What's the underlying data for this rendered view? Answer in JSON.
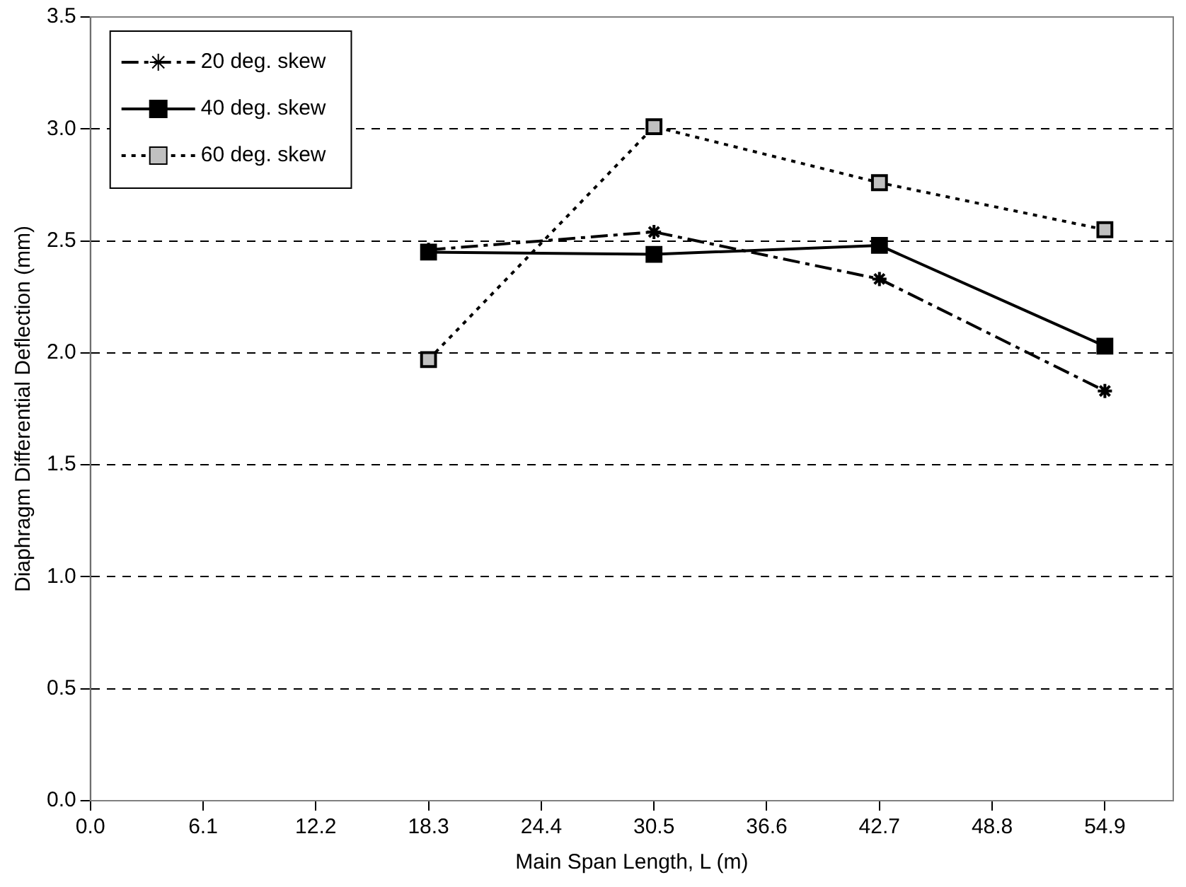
{
  "chart_data": {
    "type": "line",
    "xlabel": "Main Span Length, L (m)",
    "ylabel": "Diaphragm Differential Deflection (mm)",
    "x": [
      18.3,
      30.5,
      42.7,
      54.9
    ],
    "series": [
      {
        "name": "20 deg. skew",
        "color": "#000000",
        "values": [
          2.46,
          2.54,
          2.33,
          1.83
        ],
        "marker": "cross",
        "line_style": "dashed"
      },
      {
        "name": "40 deg. skew",
        "color": "#000000",
        "values": [
          2.45,
          2.44,
          2.48,
          2.03
        ],
        "marker": "square",
        "line_style": "solid"
      },
      {
        "name": "60 deg. skew",
        "color": "#c0c0c0",
        "values": [
          1.97,
          3.01,
          2.76,
          2.55
        ],
        "marker": "square",
        "line_style": "dotted"
      }
    ],
    "xlim": [
      0,
      58.6
    ],
    "xticks": [
      {
        "value": 0,
        "label": "0.0"
      },
      6.1,
      12.2,
      18.3,
      24.4,
      30.5,
      36.6,
      42.7,
      48.8,
      54.9
    ],
    "ylim": [
      0,
      3.5
    ],
    "yticks": [
      {
        "value": 0,
        "label": "0.0"
      },
      0.5,
      {
        "value": 1,
        "label": "1.0"
      },
      1.5,
      {
        "value": 2,
        "label": "2.0"
      },
      2.5,
      {
        "value": 3,
        "label": "3.0"
      },
      3.5
    ],
    "grid": "y",
    "legend": "top left"
  }
}
